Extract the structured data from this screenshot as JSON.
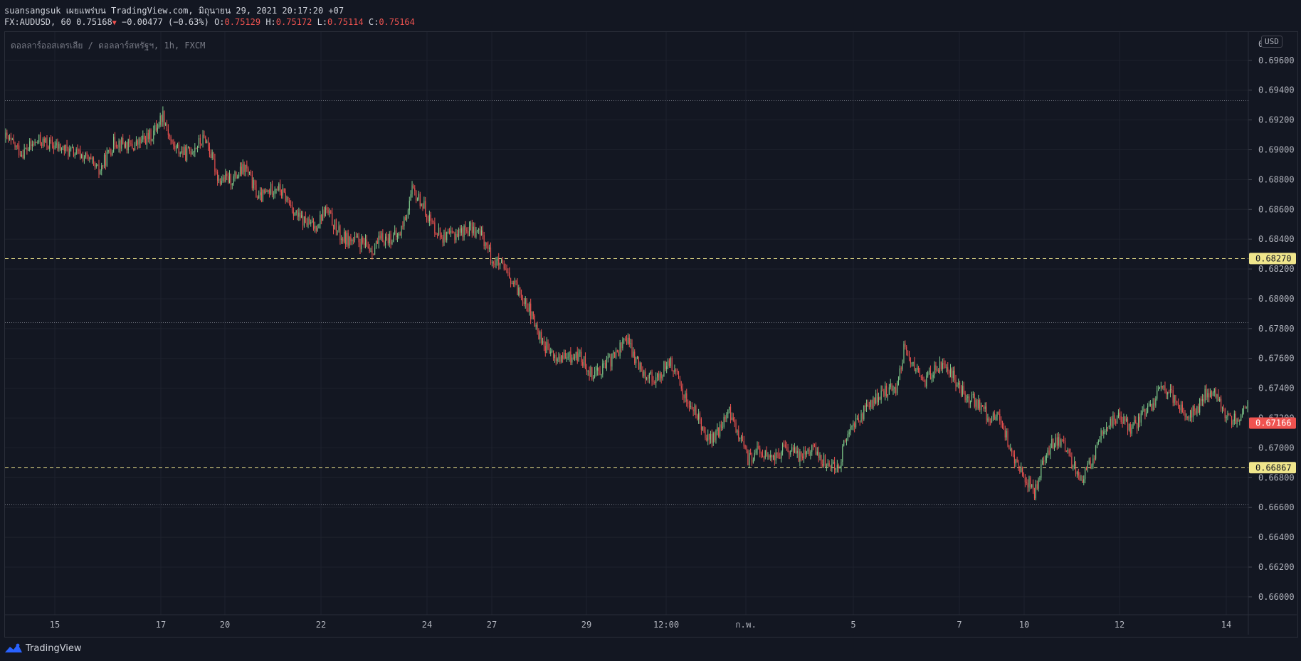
{
  "header": {
    "line1": "suansangsuk เผยแพร่บน TradingView.com, มิถุนายน 29, 2021 20:17:20 +07",
    "symbol": "FX:AUDUSD, 60",
    "last": "0.75168",
    "change": "−0.00477 (−0.63%)",
    "o_label": "O:",
    "o_value": "0.75129",
    "h_label": "H:",
    "h_value": "0.75172",
    "l_label": "L:",
    "l_value": "0.75114",
    "c_label": "C:",
    "c_value": "0.75164"
  },
  "pane_title": "ดอลลาร์ออสเตรเลีย / ดอลลาร์สหรัฐฯ, 1h, FXCM",
  "currency": "USD",
  "footer": {
    "brand": "TradingView"
  },
  "colors": {
    "background": "#131722",
    "grid": "#1e222d",
    "up": "#26a69a",
    "up_fill": "#7ec98a",
    "down": "#ef5350",
    "level_line": "#f0e68c",
    "dotted_line": "#787b86"
  },
  "chart_data": {
    "type": "candlestick",
    "ylim": [
      0.6588,
      0.6979
    ],
    "yticks": [
      "0.66000",
      "0.66200",
      "0.66400",
      "0.66600",
      "0.66800",
      "0.67000",
      "0.67200",
      "0.67400",
      "0.67600",
      "0.67800",
      "0.68000",
      "0.68200",
      "0.68400",
      "0.68600",
      "0.68800",
      "0.69000",
      "0.69200",
      "0.69400",
      "0.69600"
    ],
    "xticks": [
      "15",
      "17",
      "20",
      "22",
      "24",
      "27",
      "29",
      "12:00",
      "ก.พ.",
      "5",
      "7",
      "10",
      "12",
      "14"
    ],
    "price_labels": [
      {
        "value": "0.68270",
        "type": "level"
      },
      {
        "value": "0.67166",
        "type": "last"
      },
      {
        "value": "0.66867",
        "type": "level"
      }
    ],
    "horizontal_lines": [
      {
        "value": 0.6827,
        "style": "dashed"
      },
      {
        "value": 0.66867,
        "style": "dashed"
      },
      {
        "value": 0.6933,
        "style": "dotted"
      },
      {
        "value": 0.6784,
        "style": "dotted"
      },
      {
        "value": 0.6662,
        "style": "dotted"
      }
    ],
    "close_path": [
      [
        0,
        0.6908
      ],
      [
        12,
        0.6898
      ],
      [
        25,
        0.6906
      ],
      [
        45,
        0.69
      ],
      [
        60,
        0.6895
      ],
      [
        70,
        0.6885
      ],
      [
        82,
        0.6906
      ],
      [
        95,
        0.6902
      ],
      [
        110,
        0.691
      ],
      [
        118,
        0.6924
      ],
      [
        125,
        0.6903
      ],
      [
        135,
        0.6897
      ],
      [
        150,
        0.6908
      ],
      [
        160,
        0.688
      ],
      [
        170,
        0.688
      ],
      [
        180,
        0.6888
      ],
      [
        190,
        0.6867
      ],
      [
        203,
        0.6876
      ],
      [
        210,
        0.6868
      ],
      [
        220,
        0.6854
      ],
      [
        232,
        0.6848
      ],
      [
        240,
        0.686
      ],
      [
        252,
        0.6841
      ],
      [
        265,
        0.6838
      ],
      [
        275,
        0.6833
      ],
      [
        282,
        0.684
      ],
      [
        295,
        0.6842
      ],
      [
        300,
        0.6855
      ],
      [
        305,
        0.6872
      ],
      [
        312,
        0.6865
      ],
      [
        320,
        0.685
      ],
      [
        330,
        0.684
      ],
      [
        340,
        0.6845
      ],
      [
        350,
        0.6847
      ],
      [
        358,
        0.6842
      ],
      [
        365,
        0.6826
      ],
      [
        372,
        0.6822
      ],
      [
        380,
        0.681
      ],
      [
        390,
        0.68
      ],
      [
        398,
        0.678
      ],
      [
        405,
        0.6768
      ],
      [
        412,
        0.676
      ],
      [
        420,
        0.676
      ],
      [
        430,
        0.6762
      ],
      [
        440,
        0.675
      ],
      [
        450,
        0.6755
      ],
      [
        460,
        0.6765
      ],
      [
        465,
        0.6775
      ],
      [
        472,
        0.676
      ],
      [
        480,
        0.675
      ],
      [
        490,
        0.6745
      ],
      [
        497,
        0.676
      ],
      [
        505,
        0.6745
      ],
      [
        512,
        0.673
      ],
      [
        520,
        0.672
      ],
      [
        528,
        0.6705
      ],
      [
        535,
        0.671
      ],
      [
        542,
        0.6725
      ],
      [
        550,
        0.671
      ],
      [
        557,
        0.6692
      ],
      [
        565,
        0.6698
      ],
      [
        575,
        0.6692
      ],
      [
        585,
        0.67
      ],
      [
        595,
        0.6695
      ],
      [
        605,
        0.67
      ],
      [
        615,
        0.669
      ],
      [
        625,
        0.6688
      ],
      [
        632,
        0.671
      ],
      [
        640,
        0.672
      ],
      [
        650,
        0.673
      ],
      [
        660,
        0.6738
      ],
      [
        668,
        0.674
      ],
      [
        675,
        0.677
      ],
      [
        680,
        0.6755
      ],
      [
        690,
        0.6745
      ],
      [
        700,
        0.6755
      ],
      [
        710,
        0.675
      ],
      [
        720,
        0.6735
      ],
      [
        730,
        0.673
      ],
      [
        738,
        0.672
      ],
      [
        745,
        0.6722
      ],
      [
        752,
        0.6705
      ],
      [
        758,
        0.669
      ],
      [
        765,
        0.668
      ],
      [
        772,
        0.667
      ],
      [
        780,
        0.6695
      ],
      [
        787,
        0.6705
      ],
      [
        795,
        0.67
      ],
      [
        802,
        0.6688
      ],
      [
        808,
        0.668
      ],
      [
        815,
        0.669
      ],
      [
        820,
        0.6705
      ],
      [
        828,
        0.6717
      ],
      [
        835,
        0.672
      ],
      [
        845,
        0.6712
      ],
      [
        852,
        0.672
      ],
      [
        860,
        0.6728
      ],
      [
        866,
        0.6742
      ],
      [
        872,
        0.6738
      ],
      [
        880,
        0.673
      ],
      [
        886,
        0.6722
      ],
      [
        893,
        0.6725
      ],
      [
        900,
        0.6735
      ],
      [
        907,
        0.674
      ],
      [
        912,
        0.6727
      ],
      [
        920,
        0.672
      ],
      [
        925,
        0.6718
      ],
      [
        932,
        0.673
      ]
    ],
    "bar_count": 933
  }
}
